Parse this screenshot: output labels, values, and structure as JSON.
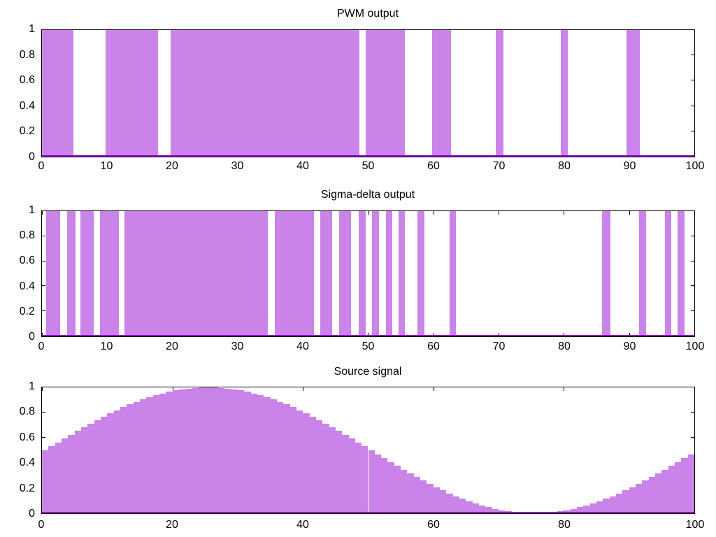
{
  "figure": {
    "background": "#ffffff",
    "description": "Three stacked gnuplot-style panels comparing PWM and sigma-delta modulator outputs against the sampled source sine wave"
  },
  "colors": {
    "fill": "#c983e9",
    "line": "#9400d3",
    "frame": "#000000",
    "text": "#000000",
    "background": "#ffffff"
  },
  "chart_data": [
    {
      "type": "bar",
      "subtype": "binary-pulse",
      "title": "PWM output",
      "xlabel": "",
      "ylabel": "",
      "xlim": [
        0,
        100
      ],
      "ylim": [
        0,
        1
      ],
      "grid": false,
      "legend": "none",
      "x_ticks": [
        0,
        10,
        20,
        30,
        40,
        50,
        60,
        70,
        80,
        90,
        100
      ],
      "y_ticks": [
        0,
        0.2,
        0.4,
        0.6,
        0.8,
        1
      ],
      "y_tick_labels": [
        "0",
        "0.2",
        "0.4",
        "0.6",
        "0.8",
        "1"
      ],
      "on_value": 1,
      "off_value": 0,
      "on_intervals": [
        [
          0,
          4.8
        ],
        [
          9.8,
          17.8
        ],
        [
          19.7,
          48.7
        ],
        [
          49.6,
          55.6
        ],
        [
          59.8,
          62.7
        ],
        [
          69.6,
          70.7
        ],
        [
          79.5,
          80.6
        ],
        [
          89.6,
          91.6
        ]
      ]
    },
    {
      "type": "bar",
      "subtype": "binary-pulse",
      "title": "Sigma-delta output",
      "xlabel": "",
      "ylabel": "",
      "xlim": [
        0,
        100
      ],
      "ylim": [
        0,
        1
      ],
      "grid": false,
      "legend": "none",
      "x_ticks": [
        0,
        10,
        20,
        30,
        40,
        50,
        60,
        70,
        80,
        90,
        100
      ],
      "y_ticks": [
        0,
        0.2,
        0.4,
        0.6,
        0.8,
        1
      ],
      "y_tick_labels": [
        "0",
        "0.2",
        "0.4",
        "0.6",
        "0.8",
        "1"
      ],
      "on_value": 1,
      "off_value": 0,
      "on_intervals": [
        [
          0.6,
          2.8
        ],
        [
          3.9,
          5.1
        ],
        [
          5.9,
          7.9
        ],
        [
          8.9,
          11.8
        ],
        [
          12.7,
          34.6
        ],
        [
          35.7,
          41.7
        ],
        [
          42.7,
          44.5
        ],
        [
          45.6,
          47.4
        ],
        [
          48.5,
          49.6
        ],
        [
          50.6,
          51.7
        ],
        [
          52.7,
          53.7
        ],
        [
          54.7,
          55.6
        ],
        [
          57.6,
          58.6
        ],
        [
          62.5,
          63.5
        ],
        [
          85.9,
          87.1
        ],
        [
          91.5,
          92.6
        ],
        [
          95.5,
          96.5
        ],
        [
          97.4,
          98.5
        ]
      ]
    },
    {
      "type": "area",
      "subtype": "staircase",
      "title": "Source signal",
      "xlabel": "",
      "ylabel": "",
      "xlim": [
        0,
        100
      ],
      "ylim": [
        0,
        1
      ],
      "grid": false,
      "legend": "none",
      "x_ticks": [
        0,
        20,
        40,
        60,
        80,
        100
      ],
      "y_ticks": [
        0,
        0.2,
        0.4,
        0.6,
        0.8,
        1
      ],
      "y_tick_labels": [
        "0",
        "0.2",
        "0.4",
        "0.6",
        "0.8",
        "1"
      ],
      "step_width": 1,
      "values": [
        0.5,
        0.5314,
        0.5627,
        0.5937,
        0.6243,
        0.6545,
        0.6841,
        0.7129,
        0.7409,
        0.7679,
        0.7939,
        0.8187,
        0.8423,
        0.8645,
        0.8853,
        0.9045,
        0.9222,
        0.9382,
        0.9524,
        0.9649,
        0.9755,
        0.9843,
        0.9911,
        0.9961,
        0.999,
        1.0,
        0.999,
        0.9961,
        0.9911,
        0.9843,
        0.9755,
        0.9649,
        0.9524,
        0.9382,
        0.9222,
        0.9045,
        0.8853,
        0.8645,
        0.8423,
        0.8187,
        0.7939,
        0.7679,
        0.7409,
        0.7129,
        0.6841,
        0.6545,
        0.6243,
        0.5937,
        0.5627,
        0.5314,
        0.5,
        0.4686,
        0.4373,
        0.4063,
        0.3757,
        0.3455,
        0.3159,
        0.2871,
        0.2591,
        0.2321,
        0.2061,
        0.1813,
        0.1577,
        0.1355,
        0.1147,
        0.0955,
        0.0778,
        0.0618,
        0.0476,
        0.0351,
        0.0245,
        0.0157,
        0.0089,
        0.0039,
        0.001,
        0.0,
        0.001,
        0.0039,
        0.0089,
        0.0157,
        0.0245,
        0.0351,
        0.0476,
        0.0618,
        0.0778,
        0.0955,
        0.1147,
        0.1355,
        0.1577,
        0.1813,
        0.2061,
        0.2321,
        0.2591,
        0.2871,
        0.3159,
        0.3455,
        0.3757,
        0.4063,
        0.4373,
        0.4686
      ]
    }
  ]
}
